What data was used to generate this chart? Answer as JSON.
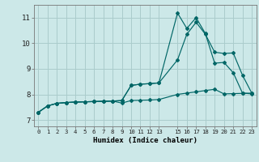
{
  "xlabel": "Humidex (Indice chaleur)",
  "background_color": "#cce8e8",
  "grid_color": "#aacccc",
  "line_color": "#006666",
  "xlim": [
    -0.5,
    23.5
  ],
  "ylim": [
    6.75,
    11.5
  ],
  "xticks": [
    0,
    1,
    2,
    3,
    4,
    5,
    6,
    7,
    8,
    9,
    10,
    11,
    12,
    13,
    15,
    16,
    17,
    18,
    19,
    20,
    21,
    22,
    23
  ],
  "yticks": [
    7,
    8,
    9,
    10,
    11
  ],
  "line1_x": [
    0,
    1,
    2,
    3,
    4,
    5,
    6,
    7,
    8,
    9,
    10,
    11,
    12,
    13,
    15,
    16,
    17,
    18,
    19,
    20,
    21,
    22,
    23
  ],
  "line1_y": [
    7.3,
    7.55,
    7.65,
    7.68,
    7.7,
    7.71,
    7.72,
    7.73,
    7.74,
    7.76,
    8.35,
    8.4,
    8.42,
    8.45,
    11.18,
    10.58,
    11.0,
    10.38,
    9.22,
    9.25,
    8.85,
    8.05,
    8.02
  ],
  "line2_x": [
    0,
    1,
    2,
    3,
    4,
    5,
    6,
    7,
    8,
    9,
    10,
    11,
    12,
    13,
    15,
    16,
    17,
    18,
    19,
    20,
    21,
    22,
    23
  ],
  "line2_y": [
    7.3,
    7.55,
    7.65,
    7.68,
    7.7,
    7.71,
    7.72,
    7.73,
    7.74,
    7.76,
    8.35,
    8.4,
    8.42,
    8.45,
    9.35,
    10.35,
    10.82,
    10.35,
    9.65,
    9.6,
    9.62,
    8.75,
    8.05
  ],
  "line3_x": [
    0,
    1,
    2,
    3,
    4,
    5,
    6,
    7,
    8,
    9,
    10,
    11,
    12,
    13,
    15,
    16,
    17,
    18,
    19,
    20,
    21,
    22,
    23
  ],
  "line3_y": [
    7.3,
    7.55,
    7.65,
    7.68,
    7.7,
    7.71,
    7.72,
    7.73,
    7.74,
    7.66,
    7.76,
    7.77,
    7.78,
    7.8,
    8.0,
    8.05,
    8.1,
    8.15,
    8.2,
    8.02,
    8.03,
    8.04,
    8.05
  ]
}
